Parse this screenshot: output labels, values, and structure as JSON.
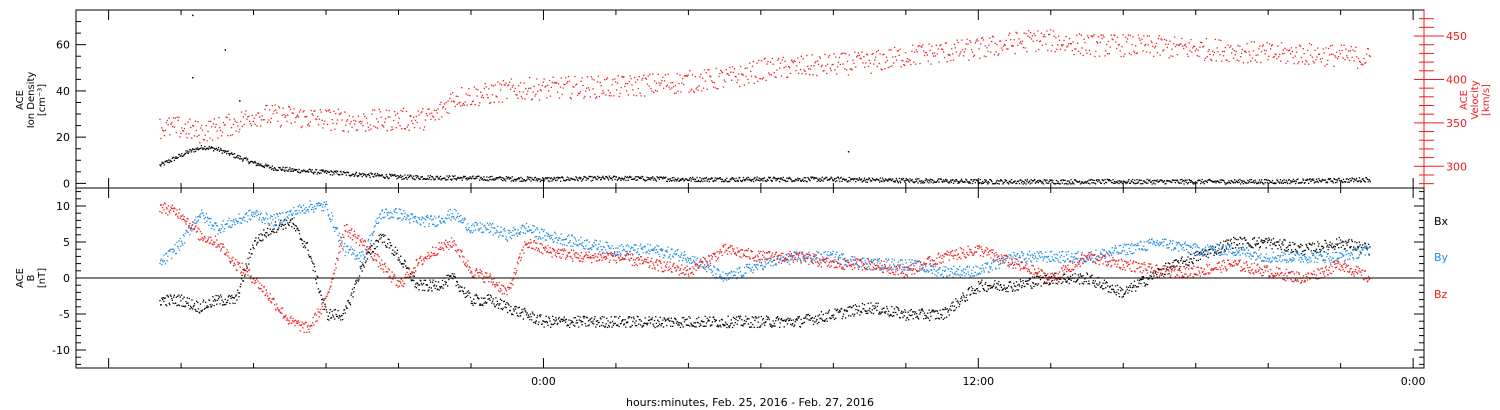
{
  "colors": {
    "black": "#000000",
    "blue": "#1f8ce0",
    "red": "#ee1c1c",
    "axis": "#000000"
  },
  "xlabel": "hours:minutes, Feb. 25, 2016 - Feb. 27, 2016",
  "chart_data": [
    {
      "type": "scatter",
      "panel": "top",
      "ylabel_left": [
        "ACE",
        "Ion Density",
        "[cm⁻³]"
      ],
      "ylabel_right": [
        "ACE",
        "Velocity",
        "[km/s]"
      ],
      "x_unit": "hours relative to Feb. 26, 2016 00:00",
      "xlim": [
        -12.9,
        24.3
      ],
      "x_ticks": [
        {
          "x": 0,
          "label": "0:00"
        },
        {
          "x": 12,
          "label": "12:00"
        },
        {
          "x": 24,
          "label": "0:00"
        }
      ],
      "ylim_left": [
        -2,
        75
      ],
      "yticks_left": [
        0,
        20,
        40,
        60
      ],
      "ylim_right": [
        275,
        480
      ],
      "yticks_right": [
        300,
        350,
        400,
        450
      ],
      "series": [
        {
          "name": "Ion Density",
          "axis": "left",
          "color": "#000000",
          "x": [
            -10.6,
            -10.2,
            -9.8,
            -9.4,
            -9.0,
            -8.5,
            -8.0,
            -7.5,
            -7.0,
            -6.0,
            -5.0,
            -4.0,
            -2.0,
            0.0,
            2.0,
            4.0,
            6.0,
            8.0,
            10.0,
            12.0,
            14.0,
            16.0,
            18.0,
            20.0,
            22.0,
            22.8
          ],
          "y": [
            8,
            11,
            14,
            16,
            15,
            12,
            9,
            7,
            6,
            5,
            4,
            3,
            2.5,
            2,
            2.5,
            2,
            2,
            2,
            1.5,
            1,
            1,
            1,
            1,
            1,
            1.5,
            2
          ],
          "outliers": [
            [
              -9.7,
              73
            ],
            [
              -9.7,
              46
            ],
            [
              -8.8,
              58
            ],
            [
              -8.4,
              36
            ],
            [
              8.4,
              14
            ]
          ]
        },
        {
          "name": "Velocity",
          "axis": "right",
          "color": "#ee1c1c",
          "x": [
            -10.6,
            -10.0,
            -9.5,
            -9.0,
            -8.5,
            -8.0,
            -7.0,
            -6.0,
            -5.0,
            -4.0,
            -3.5,
            -3.0,
            -2.5,
            -2.0,
            -1.5,
            -1.0,
            -0.5,
            0.0,
            1.0,
            2.0,
            3.0,
            4.0,
            5.0,
            5.5,
            6.0,
            7.0,
            8.0,
            9.0,
            10.0,
            11.0,
            12.0,
            13.0,
            13.5,
            14.0,
            15.0,
            16.0,
            17.0,
            18.0,
            19.0,
            20.0,
            21.0,
            22.0,
            22.8
          ],
          "y": [
            345,
            345,
            340,
            345,
            350,
            360,
            358,
            355,
            352,
            355,
            354,
            358,
            380,
            382,
            384,
            388,
            390,
            390,
            392,
            392,
            395,
            398,
            402,
            405,
            412,
            415,
            418,
            420,
            428,
            432,
            436,
            443,
            446,
            445,
            440,
            440,
            438,
            436,
            434,
            430,
            430,
            428,
            425
          ]
        }
      ]
    },
    {
      "type": "scatter",
      "panel": "bottom",
      "ylabel_left": [
        "ACE",
        "B",
        "[nT]"
      ],
      "legend": [
        "Bx",
        "By",
        "Bz"
      ],
      "legend_placement": "right",
      "zero_line": true,
      "xlim": [
        -12.9,
        24.3
      ],
      "ylim": [
        -12.5,
        12.5
      ],
      "yticks": [
        -10,
        -5,
        0,
        5,
        10
      ],
      "series": [
        {
          "name": "Bx",
          "color": "#000000",
          "x": [
            -10.6,
            -10.0,
            -9.5,
            -9.0,
            -8.5,
            -8.0,
            -7.5,
            -7.0,
            -6.5,
            -6.0,
            -5.5,
            -5.0,
            -4.5,
            -4.0,
            -3.5,
            -3.0,
            -2.5,
            -2.0,
            -1.5,
            -1.0,
            -0.5,
            0.0,
            1.0,
            2.0,
            3.0,
            4.0,
            5.0,
            6.0,
            7.0,
            8.0,
            9.0,
            10.0,
            11.0,
            12.0,
            13.0,
            14.0,
            15.0,
            16.0,
            17.0,
            18.0,
            19.0,
            20.0,
            21.0,
            22.0,
            22.8
          ],
          "y": [
            -3,
            -3,
            -4,
            -3,
            -3,
            5,
            7,
            8,
            4,
            -5,
            -5,
            2,
            6,
            3,
            -1,
            -1,
            0,
            -3,
            -3,
            -4,
            -5,
            -6,
            -6,
            -6,
            -6,
            -6,
            -6,
            -6,
            -6,
            -5,
            -4,
            -5,
            -5,
            -1,
            -1,
            0,
            0,
            -2,
            1,
            3,
            5,
            5,
            4,
            5,
            4
          ]
        },
        {
          "name": "By",
          "color": "#1f8ce0",
          "x": [
            -10.6,
            -10.0,
            -9.5,
            -9.0,
            -8.5,
            -8.0,
            -7.5,
            -7.0,
            -6.5,
            -6.0,
            -5.5,
            -5.0,
            -4.5,
            -4.0,
            -3.5,
            -3.0,
            -2.5,
            -2.0,
            -1.5,
            -1.0,
            -0.5,
            0.0,
            1.0,
            2.0,
            3.0,
            4.0,
            5.0,
            6.0,
            7.0,
            8.0,
            9.0,
            10.0,
            11.0,
            12.0,
            13.0,
            14.0,
            15.0,
            16.0,
            17.0,
            18.0,
            19.0,
            20.0,
            21.0,
            22.0,
            22.8
          ],
          "y": [
            2,
            5,
            9,
            7,
            8,
            9,
            8,
            9,
            10,
            10,
            4,
            3,
            9,
            9,
            8,
            8,
            9,
            7,
            7,
            6,
            7,
            6,
            5,
            4,
            4,
            3,
            0,
            2,
            3,
            3,
            2,
            2,
            1,
            1,
            3,
            3,
            3,
            4,
            5,
            4,
            4,
            3,
            3,
            3,
            4
          ]
        },
        {
          "name": "Bz",
          "color": "#ee1c1c",
          "x": [
            -10.6,
            -10.0,
            -9.5,
            -9.0,
            -8.5,
            -8.0,
            -7.5,
            -7.0,
            -6.5,
            -6.0,
            -5.5,
            -5.0,
            -4.5,
            -4.0,
            -3.5,
            -3.0,
            -2.5,
            -2.0,
            -1.5,
            -1.0,
            -0.5,
            0.0,
            1.0,
            2.0,
            3.0,
            4.0,
            5.0,
            6.0,
            7.0,
            8.0,
            9.0,
            10.0,
            11.0,
            12.0,
            13.0,
            14.0,
            15.0,
            16.0,
            17.0,
            18.0,
            19.0,
            20.0,
            21.0,
            22.0,
            22.8
          ],
          "y": [
            10,
            9,
            6,
            5,
            2,
            0,
            -3,
            -6,
            -7,
            -3,
            7,
            5,
            2,
            -1,
            2,
            4,
            5,
            1,
            0,
            -2,
            5,
            4,
            3,
            3,
            2,
            1,
            4,
            3,
            3,
            2,
            2,
            1,
            3,
            4,
            2,
            0,
            3,
            2,
            1,
            1,
            2,
            1,
            0,
            2,
            0
          ]
        }
      ]
    }
  ]
}
